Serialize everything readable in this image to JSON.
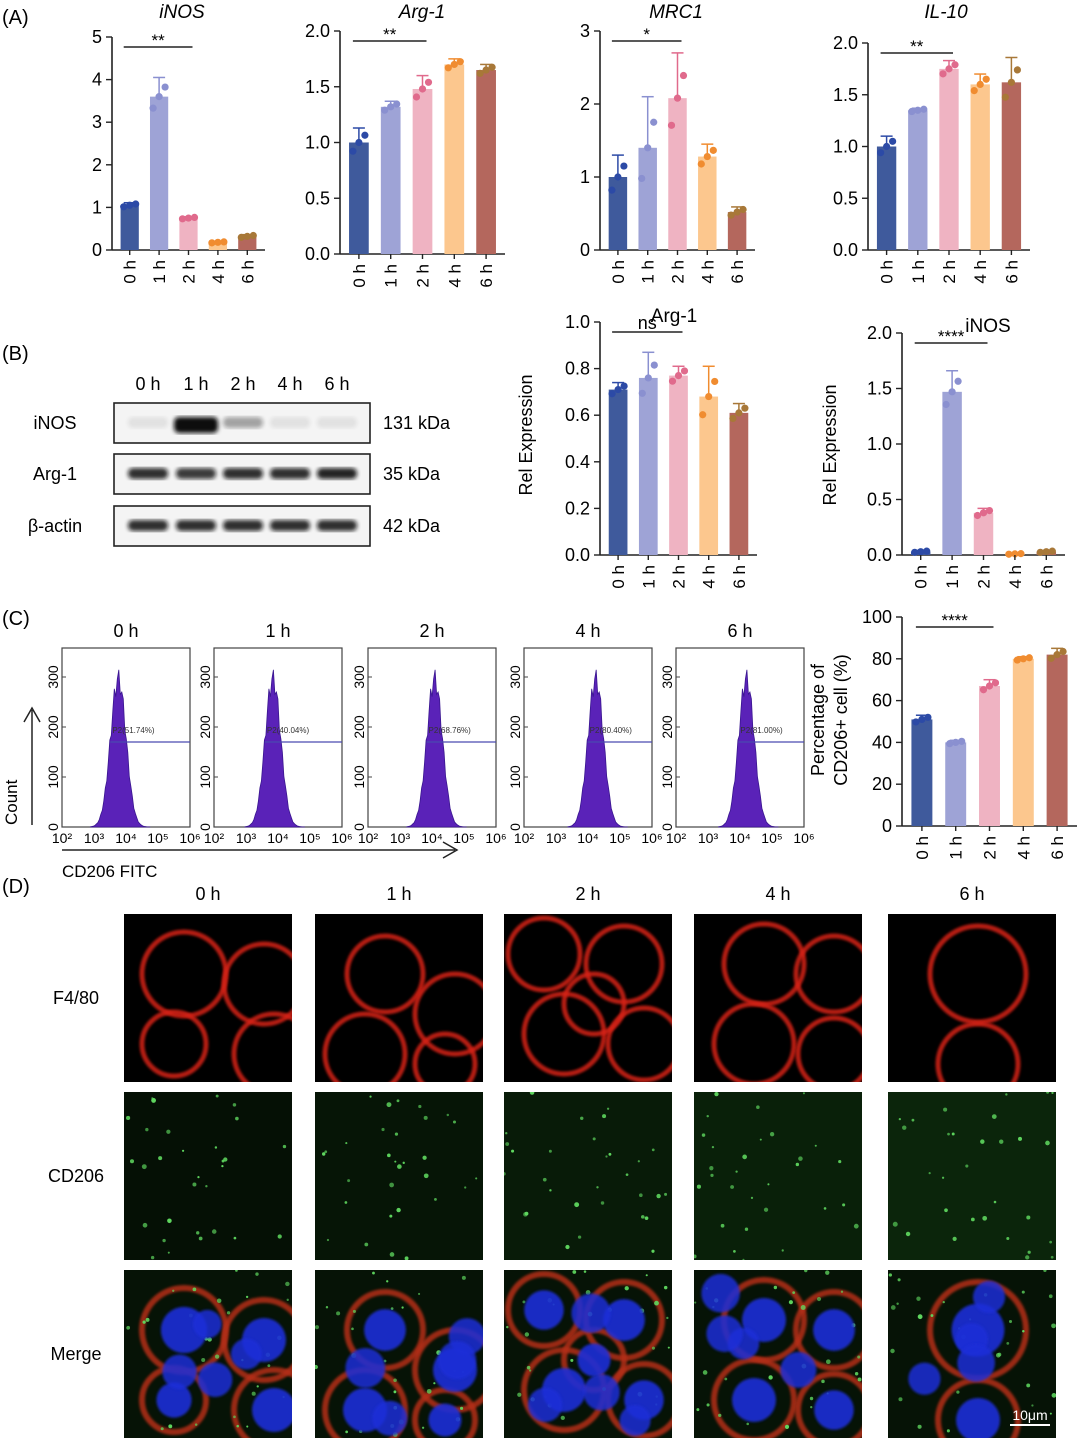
{
  "panel_labels": [
    "(A)",
    "(B)",
    "(C)",
    "(D)"
  ],
  "colors": [
    "#3f5a9c",
    "#9ea3d6",
    "#efb3c2",
    "#fcc78e",
    "#b4675d"
  ],
  "dot_colors": [
    "#2c4aa6",
    "#8a90d0",
    "#e06a8c",
    "#f08c30",
    "#a87838"
  ],
  "timepoints": [
    "0 h",
    "1 h",
    "2 h",
    "4 h",
    "6 h"
  ],
  "western": {
    "header": [
      "0 h",
      "1 h",
      "2 h",
      "4 h",
      "6 h"
    ],
    "rows": [
      {
        "name": "iNOS",
        "kda": "131 kDa",
        "intensity": [
          0.05,
          1.0,
          0.35,
          0.02,
          0.08
        ]
      },
      {
        "name": "Arg-1",
        "kda": "35 kDa",
        "intensity": [
          0.85,
          0.8,
          0.85,
          0.85,
          0.9
        ]
      },
      {
        "name": "β-actin",
        "kda": "42 kDa",
        "intensity": [
          0.85,
          0.85,
          0.85,
          0.85,
          0.85
        ]
      }
    ]
  },
  "flow": {
    "titles": [
      "0 h",
      "1 h",
      "2 h",
      "4 h",
      "6 h"
    ],
    "gates": [
      "P2(51.74%)",
      "P2(40.04%)",
      "P2(68.76%)",
      "P2(80.40%)",
      "P2(81.00%)"
    ],
    "yticks": [
      "0",
      "100",
      "200",
      "300"
    ],
    "xticks": [
      "10²",
      "10³",
      "10⁴",
      "10⁵",
      "10⁶"
    ],
    "ylabel": "Count",
    "xlabel": "CD206 FITC"
  },
  "if_panel": {
    "columns": [
      "0 h",
      "1 h",
      "2 h",
      "4 h",
      "6 h"
    ],
    "rows": [
      "F4/80",
      "CD206",
      "Merge"
    ],
    "scalebar": "10μm"
  },
  "chart_data": [
    {
      "type": "bar",
      "title": "iNOS",
      "categories": [
        "0 h",
        "1 h",
        "2 h",
        "4 h",
        "6 h"
      ],
      "values": [
        1.05,
        3.6,
        0.75,
        0.18,
        0.32
      ],
      "errors": [
        0.06,
        0.45,
        0.03,
        0.02,
        0.04
      ],
      "ylim": [
        0,
        5
      ],
      "yticks": [
        "0",
        "1",
        "2",
        "3",
        "4",
        "5"
      ],
      "sig": {
        "label": "**",
        "from": 0,
        "to": 2
      }
    },
    {
      "type": "bar",
      "title": "Arg-1",
      "categories": [
        "0 h",
        "1 h",
        "2 h",
        "4 h",
        "6 h"
      ],
      "values": [
        1.0,
        1.32,
        1.48,
        1.7,
        1.65
      ],
      "errors": [
        0.13,
        0.05,
        0.12,
        0.05,
        0.05
      ],
      "ylim": [
        0,
        2.0
      ],
      "yticks": [
        "0.0",
        "0.5",
        "1.0",
        "1.5",
        "2.0"
      ],
      "sig": {
        "label": "**",
        "from": 0,
        "to": 2
      }
    },
    {
      "type": "bar",
      "title": "MRC1",
      "categories": [
        "0 h",
        "1 h",
        "2 h",
        "4 h",
        "6 h"
      ],
      "values": [
        1.0,
        1.4,
        2.08,
        1.28,
        0.52
      ],
      "errors": [
        0.3,
        0.7,
        0.62,
        0.17,
        0.07
      ],
      "ylim": [
        0,
        3
      ],
      "yticks": [
        "0",
        "1",
        "2",
        "3"
      ],
      "sig": {
        "label": "*",
        "from": 0,
        "to": 2
      }
    },
    {
      "type": "bar",
      "title": "IL-10",
      "categories": [
        "0 h",
        "1 h",
        "2 h",
        "4 h",
        "6 h"
      ],
      "values": [
        1.0,
        1.35,
        1.75,
        1.6,
        1.62
      ],
      "errors": [
        0.1,
        0.02,
        0.08,
        0.1,
        0.24
      ],
      "ylim": [
        0,
        2.0
      ],
      "yticks": [
        "0.0",
        "0.5",
        "1.0",
        "1.5",
        "2.0"
      ],
      "sig": {
        "label": "**",
        "from": 0,
        "to": 2
      }
    },
    {
      "type": "bar",
      "title": "Arg-1",
      "ylabel": "Rel Expression",
      "categories": [
        "0 h",
        "1 h",
        "2 h",
        "4 h",
        "6 h"
      ],
      "values": [
        0.71,
        0.76,
        0.77,
        0.68,
        0.61
      ],
      "errors": [
        0.03,
        0.11,
        0.04,
        0.13,
        0.04
      ],
      "ylim": [
        0,
        1.0
      ],
      "yticks": [
        "0.0",
        "0.2",
        "0.4",
        "0.6",
        "0.8",
        "1.0"
      ],
      "sig": {
        "label": "ns",
        "from": 0,
        "to": 2
      }
    },
    {
      "type": "bar",
      "title": "iNOS",
      "ylabel": "Rel Expression",
      "categories": [
        "0 h",
        "1 h",
        "2 h",
        "4 h",
        "6 h"
      ],
      "values": [
        0.03,
        1.47,
        0.38,
        0.01,
        0.03
      ],
      "errors": [
        0.01,
        0.19,
        0.04,
        0.005,
        0.01
      ],
      "ylim": [
        0,
        2.0
      ],
      "yticks": [
        "0.0",
        "0.5",
        "1.0",
        "1.5",
        "2.0"
      ],
      "sig": {
        "label": "****",
        "from": 0,
        "to": 2
      }
    },
    {
      "type": "bar",
      "ylabel": "Percentage of CD206+ cell (%)",
      "categories": [
        "0 h",
        "1 h",
        "2 h",
        "4 h",
        "6 h"
      ],
      "values": [
        51,
        40,
        67,
        80,
        82
      ],
      "errors": [
        2,
        1,
        3,
        1,
        3
      ],
      "ylim": [
        0,
        100
      ],
      "yticks": [
        "0",
        "20",
        "40",
        "60",
        "80",
        "100"
      ],
      "sig": {
        "label": "****",
        "from": 0,
        "to": 2
      }
    }
  ]
}
